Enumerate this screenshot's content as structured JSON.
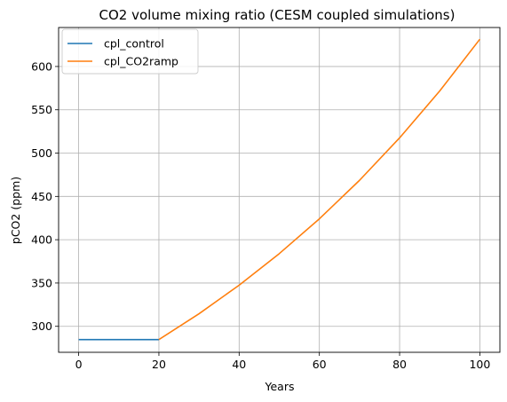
{
  "chart_data": {
    "type": "line",
    "title": "CO2 volume mixing ratio (CESM coupled simulations)",
    "xlabel": "Years",
    "ylabel": "pCO2 (ppm)",
    "xlim": [
      -5,
      105
    ],
    "ylim": [
      270,
      645
    ],
    "xticks": [
      0,
      20,
      40,
      60,
      80,
      100
    ],
    "yticks": [
      300,
      350,
      400,
      450,
      500,
      550,
      600
    ],
    "grid": true,
    "legend_position": "upper-left",
    "series": [
      {
        "name": "cpl_control",
        "color": "#1f77b4",
        "x": [
          0,
          5,
          10,
          15,
          20
        ],
        "y": [
          284.7,
          284.7,
          284.7,
          284.7,
          284.7
        ]
      },
      {
        "name": "cpl_CO2ramp",
        "color": "#ff7f0e",
        "x": [
          20,
          30,
          40,
          50,
          60,
          70,
          80,
          90,
          100
        ],
        "y": [
          284.7,
          314.5,
          347.5,
          383.9,
          424.1,
          468.5,
          517.6,
          571.7,
          631.5
        ]
      }
    ]
  }
}
